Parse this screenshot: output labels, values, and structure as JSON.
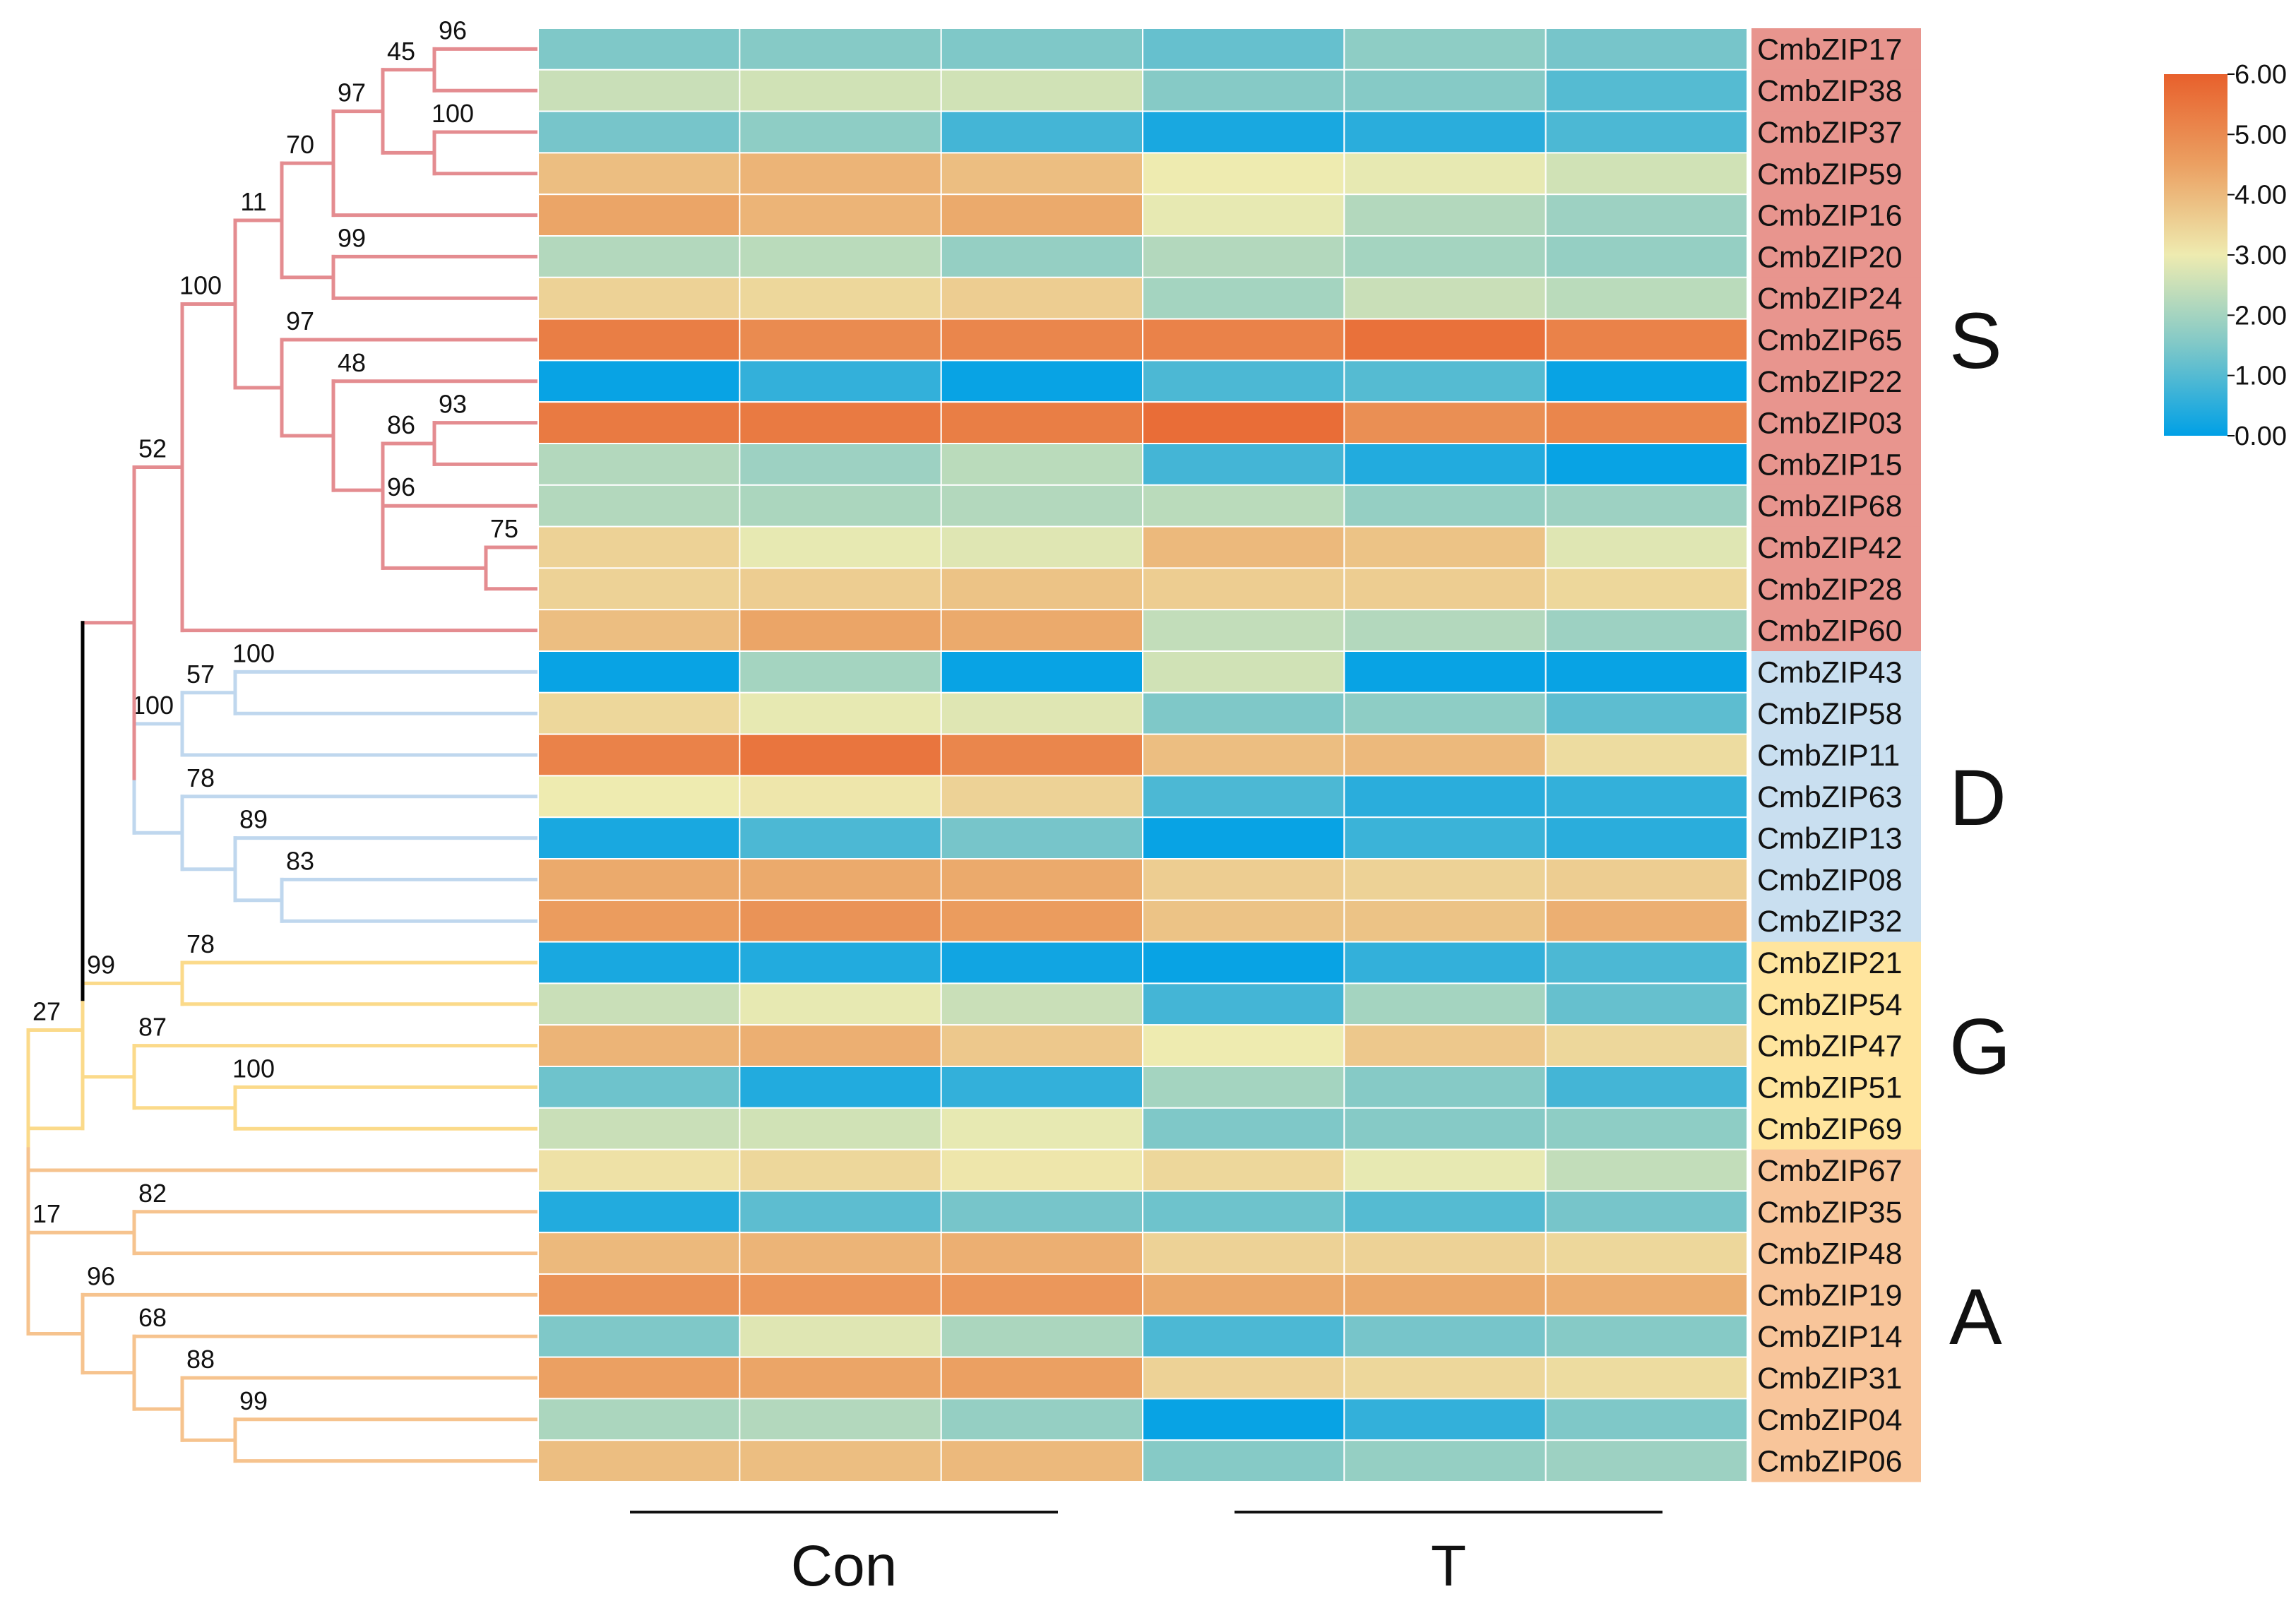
{
  "chart_data": {
    "type": "heatmap",
    "title": "",
    "column_groups": [
      {
        "label": "Con",
        "columns": 3
      },
      {
        "label": "T",
        "columns": 3
      }
    ],
    "colorbar": {
      "min": 0,
      "max": 6,
      "tick_labels": [
        "6.00",
        "5.00",
        "4.00",
        "3.00",
        "2.00",
        "1.00",
        "0.00"
      ],
      "colors": [
        "#00A0E6",
        "#7FC8C8",
        "#EEEBB0",
        "#EBA062",
        "#E8602C"
      ]
    },
    "groups": [
      {
        "label": "S",
        "color": "#E8958E",
        "line_color": "#E48C90",
        "start": 0,
        "end": 14
      },
      {
        "label": "D",
        "color": "#C9DFF0",
        "line_color": "#BFD7EE",
        "start": 15,
        "end": 21
      },
      {
        "label": "G",
        "color": "#FFE59E",
        "line_color": "#FBDA8A",
        "start": 22,
        "end": 26
      },
      {
        "label": "A",
        "color": "#F8C59A",
        "line_color": "#F6C38E",
        "start": 27,
        "end": 34
      }
    ],
    "rows": [
      {
        "gene": "CmbZIP17",
        "values": [
          1.5,
          1.6,
          1.5,
          1.2,
          1.7,
          1.4
        ]
      },
      {
        "gene": "CmbZIP38",
        "values": [
          2.5,
          2.6,
          2.6,
          1.6,
          1.6,
          1.0
        ]
      },
      {
        "gene": "CmbZIP37",
        "values": [
          1.4,
          1.7,
          0.8,
          0.3,
          0.5,
          0.9
        ]
      },
      {
        "gene": "CmbZIP59",
        "values": [
          3.9,
          4.1,
          3.9,
          3.0,
          2.9,
          2.6
        ]
      },
      {
        "gene": "CmbZIP16",
        "values": [
          4.4,
          4.1,
          4.3,
          2.9,
          2.2,
          1.9
        ]
      },
      {
        "gene": "CmbZIP20",
        "values": [
          2.2,
          2.3,
          1.8,
          2.2,
          2.0,
          1.8
        ]
      },
      {
        "gene": "CmbZIP24",
        "values": [
          3.5,
          3.4,
          3.6,
          2.0,
          2.5,
          2.3
        ]
      },
      {
        "gene": "CmbZIP65",
        "values": [
          5.3,
          5.0,
          5.1,
          5.2,
          5.6,
          5.2
        ]
      },
      {
        "gene": "CmbZIP22",
        "values": [
          0.1,
          0.6,
          0.1,
          0.9,
          1.0,
          0.1
        ]
      },
      {
        "gene": "CmbZIP03",
        "values": [
          5.4,
          5.4,
          5.3,
          5.7,
          4.9,
          5.1
        ]
      },
      {
        "gene": "CmbZIP15",
        "values": [
          2.2,
          1.9,
          2.3,
          0.8,
          0.4,
          0.1
        ]
      },
      {
        "gene": "CmbZIP68",
        "values": [
          2.2,
          2.1,
          2.2,
          2.3,
          1.8,
          1.9
        ]
      },
      {
        "gene": "CmbZIP42",
        "values": [
          3.5,
          2.9,
          2.8,
          4.0,
          3.8,
          2.8
        ]
      },
      {
        "gene": "CmbZIP28",
        "values": [
          3.5,
          3.6,
          3.8,
          3.6,
          3.6,
          3.4
        ]
      },
      {
        "gene": "CmbZIP60",
        "values": [
          3.9,
          4.4,
          4.3,
          2.4,
          2.2,
          1.9
        ]
      },
      {
        "gene": "CmbZIP43",
        "values": [
          0.1,
          2.0,
          0.1,
          2.6,
          0.1,
          0.1
        ]
      },
      {
        "gene": "CmbZIP58",
        "values": [
          3.4,
          2.9,
          2.8,
          1.5,
          1.7,
          1.1
        ]
      },
      {
        "gene": "CmbZIP11",
        "values": [
          5.2,
          5.5,
          5.1,
          3.9,
          4.0,
          3.3
        ]
      },
      {
        "gene": "CmbZIP63",
        "values": [
          3.0,
          3.1,
          3.5,
          0.9,
          0.5,
          0.6
        ]
      },
      {
        "gene": "CmbZIP13",
        "values": [
          0.3,
          0.9,
          1.4,
          0.1,
          0.7,
          0.5
        ]
      },
      {
        "gene": "CmbZIP08",
        "values": [
          4.3,
          4.3,
          4.3,
          3.6,
          3.5,
          3.6
        ]
      },
      {
        "gene": "CmbZIP32",
        "values": [
          4.6,
          4.8,
          4.6,
          3.8,
          3.8,
          4.2
        ]
      },
      {
        "gene": "CmbZIP21",
        "values": [
          0.3,
          0.4,
          0.2,
          0.1,
          0.6,
          0.9
        ]
      },
      {
        "gene": "CmbZIP54",
        "values": [
          2.5,
          2.9,
          2.5,
          0.8,
          2.0,
          1.2
        ]
      },
      {
        "gene": "CmbZIP47",
        "values": [
          4.1,
          4.2,
          3.7,
          3.0,
          3.7,
          3.4
        ]
      },
      {
        "gene": "CmbZIP51",
        "values": [
          1.3,
          0.4,
          0.6,
          2.0,
          1.6,
          0.8
        ]
      },
      {
        "gene": "CmbZIP69",
        "values": [
          2.5,
          2.6,
          2.9,
          1.5,
          1.6,
          1.7
        ]
      },
      {
        "gene": "CmbZIP67",
        "values": [
          3.2,
          3.4,
          3.1,
          3.4,
          2.9,
          2.4
        ]
      },
      {
        "gene": "CmbZIP35",
        "values": [
          0.4,
          1.1,
          1.4,
          1.3,
          1.0,
          1.4
        ]
      },
      {
        "gene": "CmbZIP48",
        "values": [
          4.0,
          4.1,
          4.2,
          3.5,
          3.5,
          3.4
        ]
      },
      {
        "gene": "CmbZIP19",
        "values": [
          4.8,
          4.7,
          4.7,
          4.3,
          4.3,
          4.2
        ]
      },
      {
        "gene": "CmbZIP14",
        "values": [
          1.5,
          2.8,
          2.1,
          0.9,
          1.4,
          1.6
        ]
      },
      {
        "gene": "CmbZIP31",
        "values": [
          4.5,
          4.4,
          4.5,
          3.5,
          3.4,
          3.3
        ]
      },
      {
        "gene": "CmbZIP04",
        "values": [
          2.1,
          2.2,
          1.8,
          0.1,
          0.6,
          1.5
        ]
      },
      {
        "gene": "CmbZIP06",
        "values": [
          3.9,
          3.9,
          4.0,
          1.6,
          1.8,
          1.9
        ]
      }
    ],
    "tree": {
      "bootstrap": [
        "96",
        "45",
        "100",
        "97",
        "70",
        "99",
        "11",
        "97",
        "48",
        "93",
        "86",
        "96",
        "75",
        "52",
        "100",
        "100",
        "57",
        "100",
        "78",
        "89",
        "83",
        "27",
        "78",
        "99",
        "87",
        "100",
        "82",
        "17",
        "96",
        "68",
        "88",
        "99"
      ]
    }
  }
}
